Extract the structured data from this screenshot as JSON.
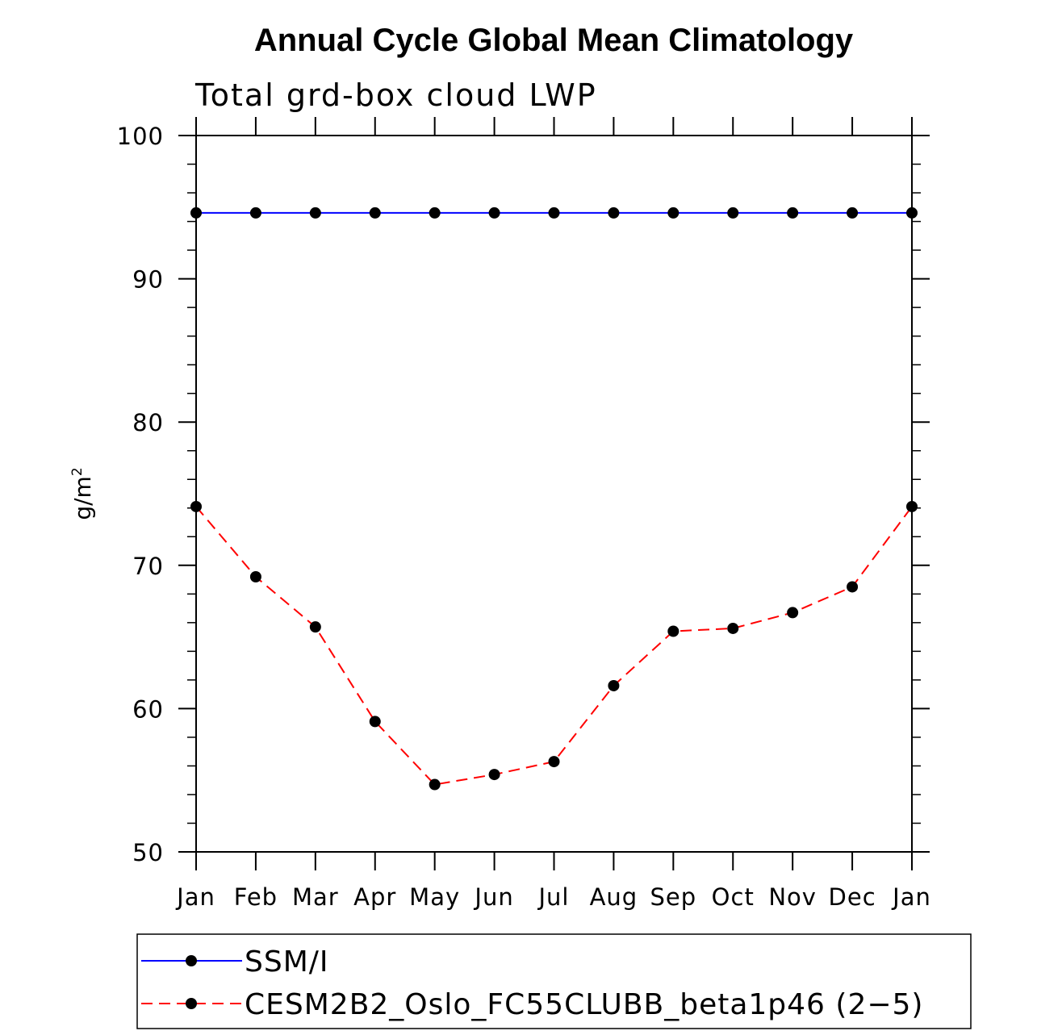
{
  "chart_data": {
    "type": "line",
    "title": "Annual Cycle Global Mean Climatology",
    "subtitle": "Total grd-box cloud LWP",
    "ylabel": "g/m",
    "ylabel_superscript": "2",
    "xlabel": "",
    "categories": [
      "Jan",
      "Feb",
      "Mar",
      "Apr",
      "May",
      "Jun",
      "Jul",
      "Aug",
      "Sep",
      "Oct",
      "Nov",
      "Dec",
      "Jan"
    ],
    "ylim": [
      50,
      100
    ],
    "yticks": [
      50,
      60,
      70,
      80,
      90,
      100
    ],
    "series": [
      {
        "name": "SSM/I",
        "color": "#0000ff",
        "style": "solid",
        "values": [
          94.6,
          94.6,
          94.6,
          94.6,
          94.6,
          94.6,
          94.6,
          94.6,
          94.6,
          94.6,
          94.6,
          94.6,
          94.6
        ]
      },
      {
        "name": "CESM2B2_Oslo_FC55CLUBB_beta1p46 (2−5)",
        "color": "#ff0000",
        "style": "dashed",
        "values": [
          74.1,
          69.2,
          65.7,
          59.1,
          54.7,
          55.4,
          56.3,
          61.6,
          65.4,
          65.6,
          66.7,
          68.5,
          74.1
        ]
      }
    ],
    "marker_color": "#000000",
    "legend_position": "bottom"
  }
}
